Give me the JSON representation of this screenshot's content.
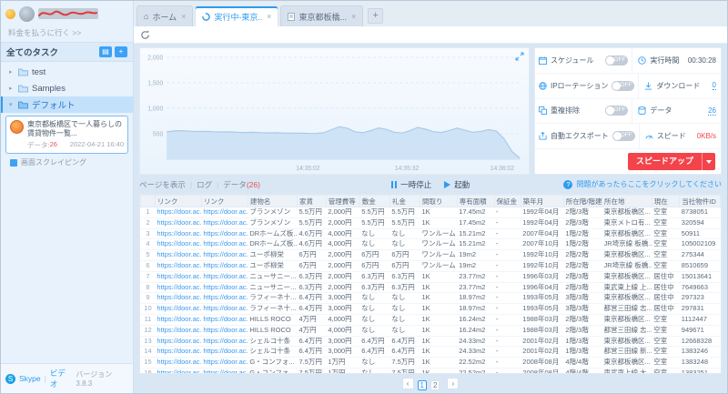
{
  "sidebar": {
    "pay_link": "料金を払うに行く >>",
    "all_tasks": "全てのタスク",
    "tree": [
      {
        "label": "test"
      },
      {
        "label": "Samples"
      },
      {
        "label": "デフォルト"
      }
    ],
    "task_card": {
      "title": "東京都板橋区で一人暮らしの賃貸物件一覧...",
      "data_label": "データ:",
      "data_count": "26",
      "timestamp": "2022-04-21 16:40",
      "type": "画面スクレイピング"
    },
    "footer": {
      "skype": "Skype",
      "divider": "|",
      "video": "ビデオ",
      "version": "バージョン 3.8.3"
    }
  },
  "tabs": [
    {
      "label": "ホーム"
    },
    {
      "label": "実行中-東京...",
      "active": true
    },
    {
      "label": "東京都板橋..."
    }
  ],
  "status_panel": {
    "rows": [
      {
        "label": "スケジュール",
        "toggle": "OFF",
        "stat_label": "実行時間",
        "stat_value": "00:30:28"
      },
      {
        "label": "IPローテーション",
        "toggle": "OFF",
        "stat_label": "ダウンロード",
        "stat_value": "0"
      },
      {
        "label": "重複排除",
        "toggle": "OFF",
        "stat_label": "データ",
        "stat_value": "26"
      },
      {
        "label": "自動エクスポート",
        "toggle": "OFF",
        "stat_label": "スピード",
        "stat_value": "0KB/s"
      }
    ],
    "speed_up_button": "スピードアップ"
  },
  "controls": {
    "show_page": "ページを表示",
    "log": "ログ",
    "data_label": "データ",
    "data_count": "(26)",
    "pause": "一時停止",
    "start": "起動",
    "help": "問題があったらここをクリックしてください"
  },
  "chart_data": {
    "type": "area",
    "title": "実行速度チャート",
    "xlabel": "",
    "ylabel": "",
    "ylim": [
      0,
      2000
    ],
    "yticks": [
      500,
      1000,
      1500,
      2000
    ],
    "xticks": [
      {
        "pos": 0.4,
        "label": "14:35:02"
      },
      {
        "pos": 0.68,
        "label": "14:35:32"
      },
      {
        "pos": 0.95,
        "label": "14:36:02"
      }
    ],
    "legend": [],
    "grid": true,
    "values": [
      540,
      555,
      560,
      550,
      545,
      548,
      540,
      535,
      538,
      530,
      525,
      528,
      522,
      518,
      520,
      515,
      510,
      512,
      508,
      505,
      520,
      580,
      640,
      610,
      540,
      520,
      560,
      615,
      585,
      530,
      515,
      560,
      625,
      590,
      540,
      525,
      565,
      610,
      570,
      530,
      545,
      580,
      555,
      400,
      150,
      20
    ],
    "line_color": "#a9cbe9",
    "fill_color": "#cfe3f6"
  },
  "table": {
    "columns": [
      "リンク",
      "リンク",
      "建物名",
      "家賃",
      "管理費等",
      "敷金",
      "礼金",
      "間取り",
      "専有面積",
      "保証金",
      "築年月",
      "所在階/階建",
      "所在地",
      "現在",
      "当社物件ID"
    ],
    "rows": [
      [
        "https://door.ac...",
        "https://door.ac...",
        "ブランメゾン",
        "5.5万円",
        "2,000円",
        "5.5万円",
        "5.5万円",
        "1K",
        "17.45m2",
        "-",
        "1992年04月",
        "2階/3階",
        "東京都板橋区...",
        "空室",
        "8738051"
      ],
      [
        "https://door.ac...",
        "https://door.ac...",
        "ブランメゾン",
        "5.5万円",
        "2,000円",
        "5.5万円",
        "5.5万円",
        "1K",
        "17.45m2",
        "-",
        "1992年04月",
        "2階/3階",
        "東京メトロ有...",
        "空室",
        "320594"
      ],
      [
        "https://door.ac...",
        "https://door.ac...",
        "DRホームズ板...",
        "4.6万円",
        "4,000円",
        "なし",
        "なし",
        "ワンルーム",
        "15.21m2",
        "-",
        "2007年04月",
        "1階/2階",
        "東京都板橋区...",
        "空室",
        "50911"
      ],
      [
        "https://door.ac...",
        "https://door.ac...",
        "DRホームズ板...",
        "4.6万円",
        "4,000円",
        "なし",
        "なし",
        "ワンルーム",
        "15.21m2",
        "-",
        "2007年10月",
        "1階/2階",
        "JR埼京線 板橋...",
        "空室",
        "105002109"
      ],
      [
        "https://door.ac...",
        "https://door.ac...",
        "ユーポ柳栄",
        "6万円",
        "2,000円",
        "6万円",
        "6万円",
        "ワンルーム",
        "19m2",
        "-",
        "1992年10月",
        "2階/2階",
        "東京都板橋区...",
        "空室",
        "275344"
      ],
      [
        "https://door.ac...",
        "https://door.ac...",
        "ユーポ柳栄",
        "6万円",
        "2,000円",
        "6万円",
        "6万円",
        "ワンルーム",
        "19m2",
        "-",
        "1992年10月",
        "2階/2階",
        "JR埼京線 板橋...",
        "空室",
        "8510659"
      ],
      [
        "https://door.ac...",
        "https://door.ac...",
        "ニューサニー...",
        "6.3万円",
        "2,000円",
        "6.3万円",
        "6.3万円",
        "1K",
        "23.77m2",
        "-",
        "1996年03月",
        "2階/3階",
        "東京都板橋区...",
        "居住中",
        "15013641"
      ],
      [
        "https://door.ac...",
        "https://door.ac...",
        "ニューサニー...",
        "6.3万円",
        "2,000円",
        "6.3万円",
        "6.3万円",
        "1K",
        "23.77m2",
        "-",
        "1996年04月",
        "2階/3階",
        "東武東上線 上...",
        "居住中",
        "7649663"
      ],
      [
        "https://door.ac...",
        "https://door.ac...",
        "ラフィーネ十...",
        "6.4万円",
        "3,000円",
        "なし",
        "なし",
        "1K",
        "18.97m2",
        "-",
        "1993年05月",
        "3階/3階",
        "東京都板橋区...",
        "居住中",
        "297323"
      ],
      [
        "https://door.ac...",
        "https://door.ac...",
        "ラフィーネ十...",
        "6.4万円",
        "3,000円",
        "なし",
        "なし",
        "1K",
        "18.97m2",
        "-",
        "1993年05月",
        "3階/3階",
        "都営三田線 志...",
        "居住中",
        "297831"
      ],
      [
        "https://door.ac...",
        "https://door.ac...",
        "HILLS ROCO",
        "4万円",
        "4,000円",
        "なし",
        "なし",
        "1K",
        "16.24m2",
        "-",
        "1988年03月",
        "2階/3階",
        "東京都板橋区...",
        "空室",
        "1112447"
      ],
      [
        "https://door.ac...",
        "https://door.ac...",
        "HILLS ROCO",
        "4万円",
        "4,000円",
        "なし",
        "なし",
        "1K",
        "16.24m2",
        "-",
        "1988年03月",
        "2階/3階",
        "都営三田線 志...",
        "空室",
        "949671"
      ],
      [
        "https://door.ac...",
        "https://door.ac...",
        "シェルコ十条",
        "6.4万円",
        "3,000円",
        "6.4万円",
        "6.4万円",
        "1K",
        "24.33m2",
        "-",
        "2001年02月",
        "1階/3階",
        "東京都板橋区...",
        "空室",
        "12668328"
      ],
      [
        "https://door.ac...",
        "https://door.ac...",
        "シェルコ十条",
        "6.4万円",
        "3,000円",
        "6.4万円",
        "6.4万円",
        "1K",
        "24.33m2",
        "-",
        "2001年02月",
        "1階/3階",
        "都営三田線 新...",
        "空室",
        "1383246"
      ],
      [
        "https://door.ac...",
        "https://door.ac...",
        "G・コンフォ...",
        "7.5万円",
        "1万円",
        "なし",
        "7.5万円",
        "1K",
        "22.52m2",
        "-",
        "2008年08月",
        "4階/4階",
        "東京都板橋区...",
        "空室",
        "1383248"
      ],
      [
        "https://door.ac...",
        "https://door.ac...",
        "G・コンフォ...",
        "7.5万円",
        "1万円",
        "なし",
        "7.5万円",
        "1K",
        "22.52m2",
        "-",
        "2008年08月",
        "4階/4階",
        "東武東上線 大...",
        "空室",
        "1383251"
      ]
    ]
  },
  "pagination": {
    "pages": [
      "1",
      "2"
    ],
    "active": "1"
  }
}
